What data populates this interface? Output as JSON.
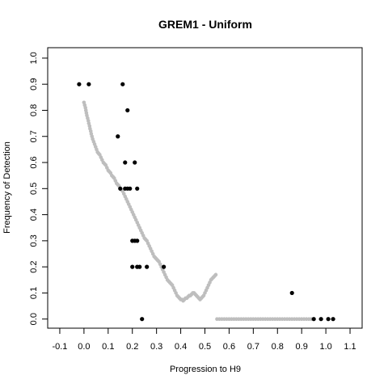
{
  "chart_data": {
    "type": "scatter",
    "title": "GREM1 - Uniform",
    "xlabel": "Progression to H9",
    "ylabel": "Frequency of Detection",
    "xlim": [
      -0.15,
      1.15
    ],
    "ylim": [
      -0.035,
      1.04
    ],
    "xticks": [
      -0.1,
      0.0,
      0.1,
      0.2,
      0.3,
      0.4,
      0.5,
      0.6,
      0.7,
      0.8,
      0.9,
      1.0,
      1.1
    ],
    "xtick_labels": [
      "-0.1",
      "0.0",
      "0.1",
      "0.2",
      "0.3",
      "0.4",
      "0.5",
      "0.6",
      "0.7",
      "0.8",
      "0.9",
      "1.0",
      "1.1"
    ],
    "yticks": [
      0.0,
      0.1,
      0.2,
      0.3,
      0.4,
      0.5,
      0.6,
      0.7,
      0.8,
      0.9,
      1.0
    ],
    "ytick_labels": [
      "0.0",
      "0.1",
      "0.2",
      "0.3",
      "0.4",
      "0.5",
      "0.6",
      "0.7",
      "0.8",
      "0.9",
      "1.0"
    ],
    "grid": false,
    "series": [
      {
        "color": "#bebebe",
        "points": [
          [
            0.0,
            0.83
          ],
          [
            0.003,
            0.82
          ],
          [
            0.006,
            0.81
          ],
          [
            0.008,
            0.8
          ],
          [
            0.01,
            0.79
          ],
          [
            0.012,
            0.78
          ],
          [
            0.015,
            0.77
          ],
          [
            0.018,
            0.76
          ],
          [
            0.02,
            0.75
          ],
          [
            0.023,
            0.74
          ],
          [
            0.025,
            0.73
          ],
          [
            0.028,
            0.72
          ],
          [
            0.03,
            0.71
          ],
          [
            0.033,
            0.7
          ],
          [
            0.036,
            0.69
          ],
          [
            0.04,
            0.68
          ],
          [
            0.044,
            0.67
          ],
          [
            0.048,
            0.66
          ],
          [
            0.052,
            0.65
          ],
          [
            0.056,
            0.64
          ],
          [
            0.06,
            0.635
          ],
          [
            0.065,
            0.63
          ],
          [
            0.07,
            0.62
          ],
          [
            0.075,
            0.61
          ],
          [
            0.08,
            0.6
          ],
          [
            0.085,
            0.595
          ],
          [
            0.09,
            0.59
          ],
          [
            0.095,
            0.58
          ],
          [
            0.1,
            0.57
          ],
          [
            0.105,
            0.565
          ],
          [
            0.11,
            0.56
          ],
          [
            0.115,
            0.55
          ],
          [
            0.12,
            0.545
          ],
          [
            0.125,
            0.54
          ],
          [
            0.13,
            0.53
          ],
          [
            0.135,
            0.52
          ],
          [
            0.14,
            0.515
          ],
          [
            0.145,
            0.51
          ],
          [
            0.15,
            0.5
          ],
          [
            0.155,
            0.495
          ],
          [
            0.16,
            0.49
          ],
          [
            0.165,
            0.48
          ],
          [
            0.17,
            0.47
          ],
          [
            0.175,
            0.46
          ],
          [
            0.18,
            0.45
          ],
          [
            0.185,
            0.44
          ],
          [
            0.19,
            0.43
          ],
          [
            0.195,
            0.42
          ],
          [
            0.2,
            0.41
          ],
          [
            0.205,
            0.4
          ],
          [
            0.21,
            0.39
          ],
          [
            0.215,
            0.38
          ],
          [
            0.22,
            0.37
          ],
          [
            0.225,
            0.36
          ],
          [
            0.23,
            0.35
          ],
          [
            0.235,
            0.34
          ],
          [
            0.24,
            0.33
          ],
          [
            0.245,
            0.32
          ],
          [
            0.25,
            0.31
          ],
          [
            0.255,
            0.305
          ],
          [
            0.26,
            0.3
          ],
          [
            0.265,
            0.29
          ],
          [
            0.27,
            0.28
          ],
          [
            0.275,
            0.27
          ],
          [
            0.28,
            0.26
          ],
          [
            0.285,
            0.25
          ],
          [
            0.29,
            0.24
          ],
          [
            0.295,
            0.235
          ],
          [
            0.3,
            0.23
          ],
          [
            0.305,
            0.225
          ],
          [
            0.31,
            0.22
          ],
          [
            0.315,
            0.21
          ],
          [
            0.32,
            0.2
          ],
          [
            0.325,
            0.19
          ],
          [
            0.33,
            0.18
          ],
          [
            0.335,
            0.17
          ],
          [
            0.34,
            0.16
          ],
          [
            0.345,
            0.15
          ],
          [
            0.35,
            0.145
          ],
          [
            0.355,
            0.14
          ],
          [
            0.36,
            0.135
          ],
          [
            0.365,
            0.13
          ],
          [
            0.37,
            0.12
          ],
          [
            0.375,
            0.11
          ],
          [
            0.38,
            0.1
          ],
          [
            0.385,
            0.09
          ],
          [
            0.39,
            0.085
          ],
          [
            0.395,
            0.08
          ],
          [
            0.4,
            0.075
          ],
          [
            0.405,
            0.075
          ],
          [
            0.41,
            0.07
          ],
          [
            0.415,
            0.075
          ],
          [
            0.42,
            0.08
          ],
          [
            0.425,
            0.08
          ],
          [
            0.43,
            0.085
          ],
          [
            0.435,
            0.09
          ],
          [
            0.44,
            0.09
          ],
          [
            0.445,
            0.095
          ],
          [
            0.45,
            0.1
          ],
          [
            0.455,
            0.1
          ],
          [
            0.46,
            0.095
          ],
          [
            0.465,
            0.09
          ],
          [
            0.47,
            0.085
          ],
          [
            0.475,
            0.08
          ],
          [
            0.48,
            0.075
          ],
          [
            0.485,
            0.08
          ],
          [
            0.49,
            0.085
          ],
          [
            0.495,
            0.09
          ],
          [
            0.5,
            0.1
          ],
          [
            0.505,
            0.11
          ],
          [
            0.51,
            0.12
          ],
          [
            0.515,
            0.13
          ],
          [
            0.52,
            0.14
          ],
          [
            0.525,
            0.15
          ],
          [
            0.53,
            0.155
          ],
          [
            0.535,
            0.16
          ],
          [
            0.54,
            0.165
          ],
          [
            0.545,
            0.17
          ],
          [
            0.55,
            0.0
          ],
          [
            0.56,
            0.0
          ],
          [
            0.57,
            0.0
          ],
          [
            0.58,
            0.0
          ],
          [
            0.59,
            0.0
          ],
          [
            0.6,
            0.0
          ],
          [
            0.61,
            0.0
          ],
          [
            0.62,
            0.0
          ],
          [
            0.63,
            0.0
          ],
          [
            0.64,
            0.0
          ],
          [
            0.65,
            0.0
          ],
          [
            0.66,
            0.0
          ],
          [
            0.67,
            0.0
          ],
          [
            0.68,
            0.0
          ],
          [
            0.69,
            0.0
          ],
          [
            0.7,
            0.0
          ],
          [
            0.71,
            0.0
          ],
          [
            0.72,
            0.0
          ],
          [
            0.73,
            0.0
          ],
          [
            0.74,
            0.0
          ],
          [
            0.75,
            0.0
          ],
          [
            0.76,
            0.0
          ],
          [
            0.77,
            0.0
          ],
          [
            0.78,
            0.0
          ],
          [
            0.79,
            0.0
          ],
          [
            0.8,
            0.0
          ],
          [
            0.81,
            0.0
          ],
          [
            0.82,
            0.0
          ],
          [
            0.83,
            0.0
          ],
          [
            0.84,
            0.0
          ],
          [
            0.85,
            0.0
          ],
          [
            0.86,
            0.0
          ],
          [
            0.87,
            0.0
          ],
          [
            0.88,
            0.0
          ],
          [
            0.89,
            0.0
          ],
          [
            0.9,
            0.0
          ],
          [
            0.91,
            0.0
          ],
          [
            0.92,
            0.0
          ],
          [
            0.93,
            0.0
          ],
          [
            0.94,
            0.0
          ],
          [
            0.95,
            0.0
          ]
        ]
      },
      {
        "color": "#000000",
        "points": [
          [
            -0.02,
            0.9
          ],
          [
            0.02,
            0.9
          ],
          [
            0.16,
            0.9
          ],
          [
            0.18,
            0.8
          ],
          [
            0.14,
            0.7
          ],
          [
            0.21,
            0.6
          ],
          [
            0.17,
            0.6
          ],
          [
            0.15,
            0.5
          ],
          [
            0.17,
            0.5
          ],
          [
            0.18,
            0.5
          ],
          [
            0.19,
            0.5
          ],
          [
            0.22,
            0.5
          ],
          [
            0.2,
            0.3
          ],
          [
            0.21,
            0.3
          ],
          [
            0.22,
            0.3
          ],
          [
            0.2,
            0.2
          ],
          [
            0.22,
            0.2
          ],
          [
            0.23,
            0.2
          ],
          [
            0.26,
            0.2
          ],
          [
            0.33,
            0.2
          ],
          [
            0.24,
            0.0
          ],
          [
            0.86,
            0.1
          ],
          [
            0.95,
            0.0
          ],
          [
            0.98,
            0.0
          ],
          [
            1.01,
            0.0
          ],
          [
            1.03,
            0.0
          ]
        ]
      }
    ]
  }
}
